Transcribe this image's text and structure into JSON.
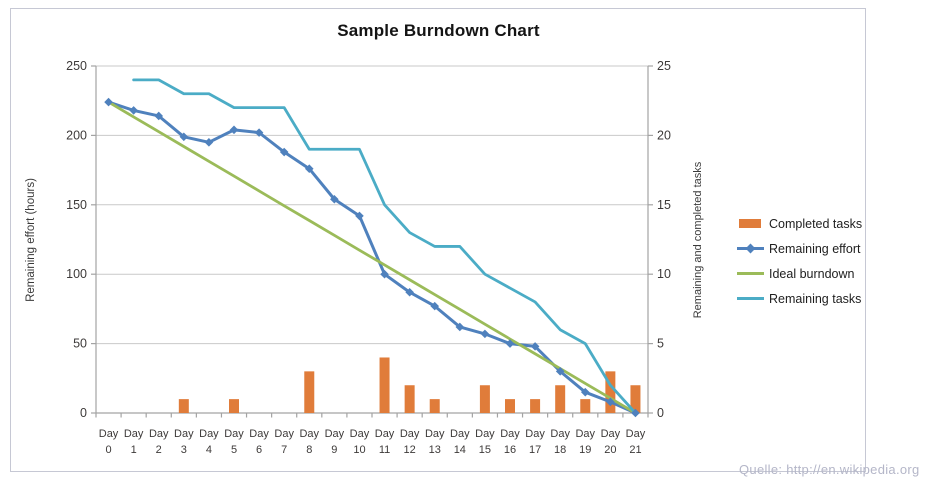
{
  "page": {
    "source_note": "Quelle: http://en.wikipedia.org"
  },
  "colors": {
    "bar_orange": "#e07c3a",
    "effort_blue": "#4f81bd",
    "ideal_green": "#9bbb59",
    "tasks_teal": "#4bacc6",
    "gridline": "#c9c9c9",
    "axis_line": "#a3a3a3",
    "tick_text": "#3d3a39",
    "axis_title_text": "#3a3a3a",
    "frame_border": "#c6c8d4",
    "source_text": "#b4b6c8",
    "title_text": "#141414"
  },
  "chart_data": {
    "type": "combo-bar-line",
    "title": "Sample Burndown Chart",
    "grid": true,
    "legend_position": "right",
    "x_axis": {
      "tick_prefix": "Day",
      "categories": [
        0,
        1,
        2,
        3,
        4,
        5,
        6,
        7,
        8,
        9,
        10,
        11,
        12,
        13,
        14,
        15,
        16,
        17,
        18,
        19,
        20,
        21
      ]
    },
    "y_left": {
      "label": "Remaining effort (hours)",
      "min": 0,
      "max": 250,
      "step": 50
    },
    "y_right": {
      "label": "Remaining and completed tasks",
      "min": 0,
      "max": 25,
      "step": 5
    },
    "series": [
      {
        "name": "Completed tasks",
        "type": "bar",
        "axis": "right",
        "color_key": "bar_orange",
        "values": [
          null,
          null,
          null,
          1,
          null,
          1,
          null,
          null,
          3,
          null,
          null,
          4,
          2,
          1,
          null,
          2,
          1,
          1,
          2,
          1,
          3,
          2
        ]
      },
      {
        "name": "Remaining effort",
        "type": "line",
        "axis": "left",
        "marker": "diamond",
        "color_key": "effort_blue",
        "values": [
          224,
          218,
          214,
          199,
          195,
          204,
          202,
          188,
          176,
          154,
          142,
          100,
          87,
          77,
          62,
          57,
          50,
          48,
          30,
          15,
          8,
          0
        ]
      },
      {
        "name": "Ideal burndown",
        "type": "line",
        "axis": "left",
        "color_key": "ideal_green",
        "values": [
          224,
          213.3,
          202.7,
          192,
          181.3,
          170.7,
          160,
          149.3,
          138.7,
          128,
          117.3,
          106.7,
          96,
          85.3,
          74.7,
          64,
          53.3,
          42.7,
          32,
          21.3,
          10.7,
          0
        ]
      },
      {
        "name": "Remaining tasks",
        "type": "line",
        "axis": "right",
        "color_key": "tasks_teal",
        "values": [
          null,
          24,
          24,
          23,
          23,
          22,
          22,
          22,
          19,
          19,
          19,
          15,
          13,
          12,
          12,
          10,
          9,
          8,
          6,
          5,
          2,
          0
        ]
      }
    ]
  }
}
